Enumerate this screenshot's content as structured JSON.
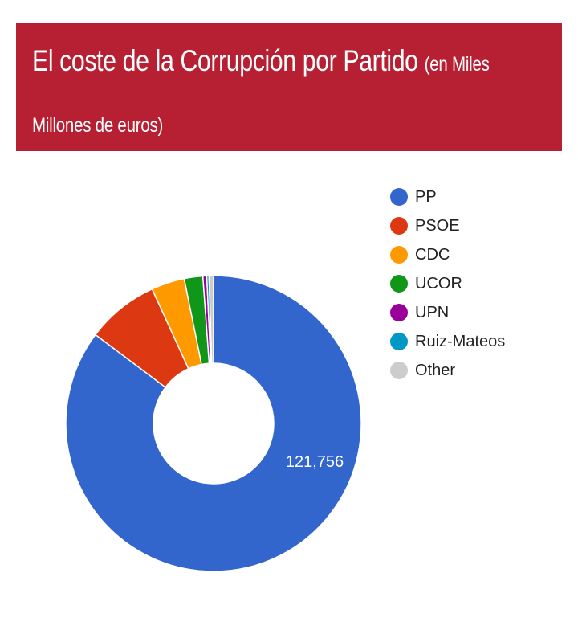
{
  "chart_data": {
    "type": "pie",
    "donut": true,
    "title": "El coste de la Corrupción por Partido",
    "subtitle": "(en Miles Millones de euros)",
    "categories": [
      "PP",
      "PSOE",
      "CDC",
      "UCOR",
      "UPN",
      "Ruiz-Mateos",
      "Other"
    ],
    "values": [
      121756,
      11300,
      5200,
      2900,
      600,
      350,
      700
    ],
    "colors": [
      "#3366cc",
      "#dc3912",
      "#ff9900",
      "#109618",
      "#990099",
      "#0099c6",
      "#cccccc"
    ],
    "data_labels": [
      "121,756",
      "",
      "",
      "",
      "",
      "",
      ""
    ],
    "legend_position": "right"
  }
}
